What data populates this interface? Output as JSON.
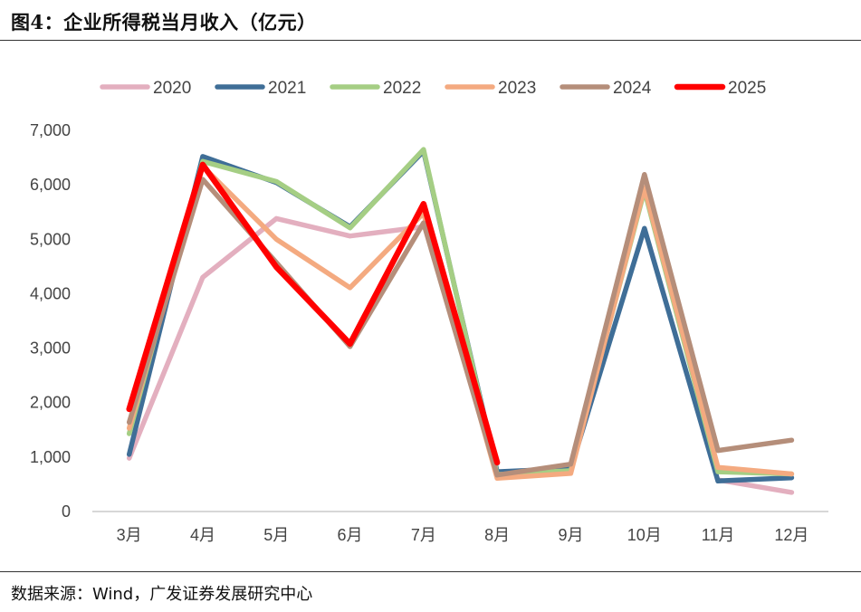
{
  "header": {
    "title": "图4：企业所得税当月收入（亿元）"
  },
  "footer": {
    "source": "数据来源：Wind，广发证券发展研究中心"
  },
  "chart_data": {
    "type": "line",
    "title": "企业所得税当月收入（亿元）",
    "categories": [
      "3月",
      "4月",
      "5月",
      "6月",
      "7月",
      "8月",
      "9月",
      "10月",
      "11月",
      "12月"
    ],
    "ylim": [
      0,
      7000
    ],
    "yticks": [
      0,
      1000,
      2000,
      3000,
      4000,
      5000,
      6000,
      7000
    ],
    "ytick_labels": [
      "0",
      "1,000",
      "2,000",
      "3,000",
      "4,000",
      "5,000",
      "6,000",
      "7,000"
    ],
    "grid": false,
    "legend_position": "top",
    "series": [
      {
        "name": "2020",
        "color": "#E3AFBF",
        "values": [
          980,
          4300,
          5380,
          5060,
          5230,
          null,
          null,
          null,
          580,
          350
        ]
      },
      {
        "name": "2021",
        "color": "#3F6E97",
        "values": [
          1050,
          6520,
          6040,
          5230,
          6620,
          730,
          790,
          5200,
          560,
          620
        ]
      },
      {
        "name": "2022",
        "color": "#A5CE84",
        "values": [
          1430,
          6430,
          6060,
          5210,
          6650,
          680,
          750,
          5900,
          730,
          690
        ]
      },
      {
        "name": "2023",
        "color": "#F4AA80",
        "values": [
          1530,
          6340,
          5000,
          4110,
          5480,
          610,
          700,
          5950,
          810,
          690
        ]
      },
      {
        "name": "2024",
        "color": "#B58E7A",
        "values": [
          1640,
          6100,
          4570,
          3030,
          5300,
          670,
          870,
          6190,
          1120,
          1310
        ]
      },
      {
        "name": "2025",
        "color": "#FF0000",
        "values": [
          1880,
          6370,
          4490,
          3080,
          5650,
          900,
          null,
          null,
          null,
          null
        ]
      }
    ]
  }
}
